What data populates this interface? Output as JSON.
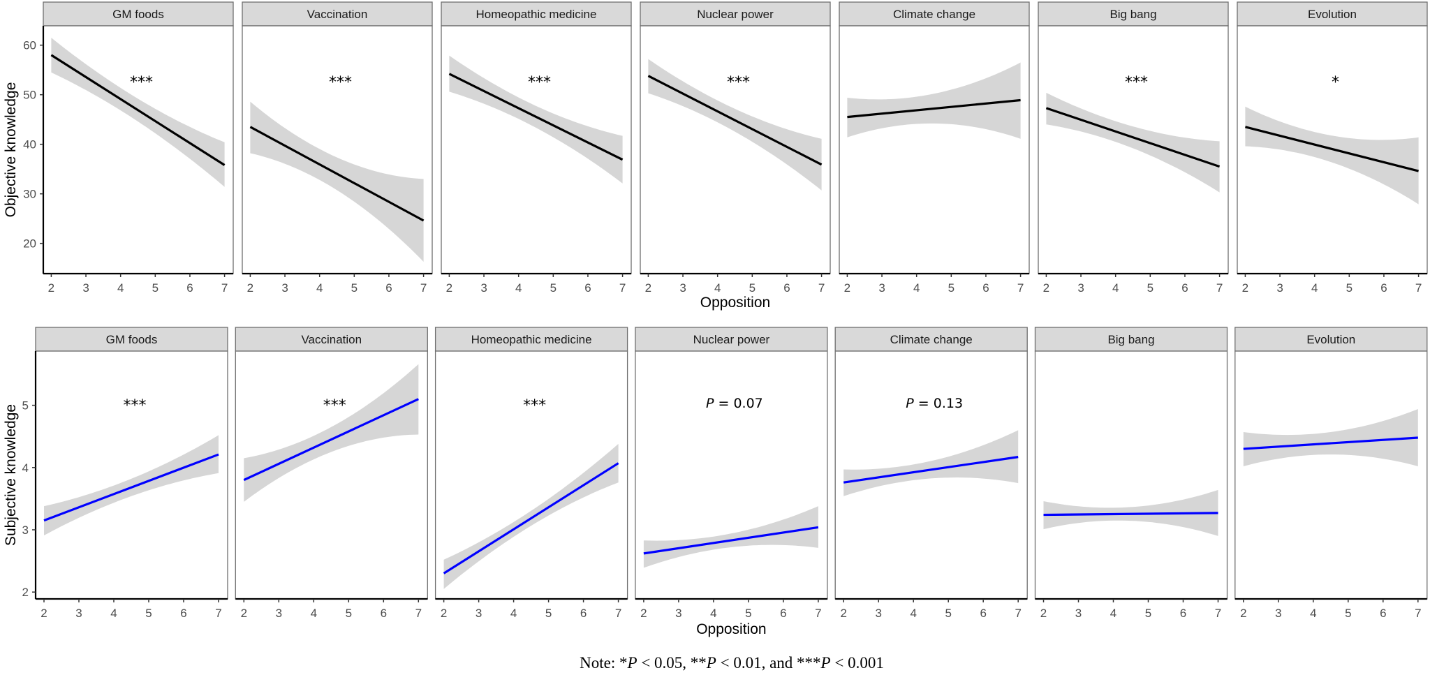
{
  "note": {
    "segments": [
      {
        "text": "Note: *",
        "italic": false
      },
      {
        "text": "P",
        "italic": true
      },
      {
        "text": " < 0.05, **",
        "italic": false
      },
      {
        "text": "P",
        "italic": true
      },
      {
        "text": " < 0.01, and ***",
        "italic": false
      },
      {
        "text": "P",
        "italic": true
      },
      {
        "text": " < 0.001",
        "italic": false
      }
    ]
  },
  "chart_data": [
    {
      "type": "line",
      "facet_row": "top",
      "xlabel": "Opposition",
      "ylabel": "Objective knowledge",
      "xlim": [
        1.77,
        7.25
      ],
      "ylim": [
        13.9,
        63.9
      ],
      "xticks": [
        "2",
        "3",
        "4",
        "5",
        "6",
        "7"
      ],
      "yticks": [
        "20",
        "30",
        "40",
        "50",
        "60"
      ],
      "grid": false,
      "line_color": "#000000",
      "band_color": "#d6d6d6",
      "strip_color": "#d9d9d9",
      "panels": [
        {
          "title": "GM foods",
          "annotation": [
            {
              "text": "***",
              "italic": false
            }
          ],
          "fit": {
            "x": [
              2,
              7
            ],
            "y": [
              58.0,
              35.8
            ]
          },
          "ci": {
            "x": [
              2,
              4.5,
              7
            ],
            "lower": [
              54.5,
              44.6,
              31.4
            ],
            "upper": [
              61.5,
              49.2,
              40.4
            ]
          }
        },
        {
          "title": "Vaccination",
          "annotation": [
            {
              "text": "***",
              "italic": false
            }
          ],
          "fit": {
            "x": [
              2,
              7
            ],
            "y": [
              43.5,
              24.6
            ]
          },
          "ci": {
            "x": [
              2,
              4.5,
              7
            ],
            "lower": [
              38.2,
              30.75,
              16.3
            ],
            "upper": [
              48.6,
              37.35,
              33.0
            ]
          }
        },
        {
          "title": "Homeopathic medicine",
          "annotation": [
            {
              "text": "***",
              "italic": false
            }
          ],
          "fit": {
            "x": [
              2,
              7
            ],
            "y": [
              54.2,
              36.9
            ]
          },
          "ci": {
            "x": [
              2,
              4.5,
              7
            ],
            "lower": [
              50.6,
              43.35,
              32.1
            ],
            "upper": [
              57.9,
              47.75,
              41.7
            ]
          }
        },
        {
          "title": "Nuclear power",
          "annotation": [
            {
              "text": "***",
              "italic": false
            }
          ],
          "fit": {
            "x": [
              2,
              7
            ],
            "y": [
              53.8,
              35.9
            ]
          },
          "ci": {
            "x": [
              2,
              4.5,
              7
            ],
            "lower": [
              50.3,
              42.55,
              30.7
            ],
            "upper": [
              57.2,
              47.15,
              41.1
            ]
          }
        },
        {
          "title": "Climate change",
          "annotation": [],
          "fit": {
            "x": [
              2,
              7
            ],
            "y": [
              45.5,
              48.9
            ]
          },
          "ci": {
            "x": [
              2,
              4.5,
              7
            ],
            "lower": [
              41.4,
              44.2,
              41.1
            ],
            "upper": [
              49.4,
              50.2,
              56.5
            ]
          }
        },
        {
          "title": "Big bang",
          "annotation": [
            {
              "text": "***",
              "italic": false
            }
          ],
          "fit": {
            "x": [
              2,
              7
            ],
            "y": [
              47.3,
              35.5
            ]
          },
          "ci": {
            "x": [
              2,
              4.5,
              7
            ],
            "lower": [
              44.0,
              39.2,
              30.3
            ],
            "upper": [
              50.4,
              43.6,
              40.6
            ]
          }
        },
        {
          "title": "Evolution",
          "annotation": [
            {
              "text": "*",
              "italic": false
            }
          ],
          "fit": {
            "x": [
              2,
              7
            ],
            "y": [
              43.5,
              34.6
            ]
          },
          "ci": {
            "x": [
              2,
              4.5,
              7
            ],
            "lower": [
              39.6,
              36.35,
              27.9
            ],
            "upper": [
              47.6,
              41.75,
              41.4
            ]
          }
        }
      ]
    },
    {
      "type": "line",
      "facet_row": "bottom",
      "xlabel": "Opposition",
      "ylabel": "Subjective knowledge",
      "xlim": [
        1.76,
        7.26
      ],
      "ylim": [
        1.89,
        5.87
      ],
      "xticks": [
        "2",
        "3",
        "4",
        "5",
        "6",
        "7"
      ],
      "yticks": [
        "2",
        "3",
        "4",
        "5"
      ],
      "grid": false,
      "line_color": "#0000ff",
      "band_color": "#d6d6d6",
      "strip_color": "#d9d9d9",
      "panels": [
        {
          "title": "GM foods",
          "annotation": [
            {
              "text": "***",
              "italic": false
            }
          ],
          "fit": {
            "x": [
              2,
              7
            ],
            "y": [
              3.15,
              4.21
            ]
          },
          "ci": {
            "x": [
              2,
              4.5,
              7
            ],
            "lower": [
              2.91,
              3.54,
              3.91
            ],
            "upper": [
              3.38,
              3.82,
              4.52
            ]
          }
        },
        {
          "title": "Vaccination",
          "annotation": [
            {
              "text": "***",
              "italic": false
            }
          ],
          "fit": {
            "x": [
              2,
              7
            ],
            "y": [
              3.8,
              5.1
            ]
          },
          "ci": {
            "x": [
              2,
              4.5,
              7
            ],
            "lower": [
              3.45,
              4.25,
              4.53
            ],
            "upper": [
              4.15,
              4.65,
              5.66
            ]
          }
        },
        {
          "title": "Homeopathic medicine",
          "annotation": [
            {
              "text": "***",
              "italic": false
            }
          ],
          "fit": {
            "x": [
              2,
              7
            ],
            "y": [
              2.3,
              4.07
            ]
          },
          "ci": {
            "x": [
              2,
              4.5,
              7
            ],
            "lower": [
              2.05,
              3.065,
              3.76
            ],
            "upper": [
              2.52,
              3.305,
              4.38
            ]
          }
        },
        {
          "title": "Nuclear power",
          "annotation": [
            {
              "text": "P",
              "italic": true
            },
            {
              "text": " = 0.07",
              "italic": false
            }
          ],
          "fit": {
            "x": [
              2,
              7
            ],
            "y": [
              2.62,
              3.04
            ]
          },
          "ci": {
            "x": [
              2,
              4.5,
              7
            ],
            "lower": [
              2.39,
              2.72,
              2.71
            ],
            "upper": [
              2.83,
              2.94,
              3.38
            ]
          }
        },
        {
          "title": "Climate change",
          "annotation": [
            {
              "text": "P",
              "italic": true
            },
            {
              "text": " = 0.13",
              "italic": false
            }
          ],
          "fit": {
            "x": [
              2,
              7
            ],
            "y": [
              3.76,
              4.17
            ]
          },
          "ci": {
            "x": [
              2,
              4.5,
              7
            ],
            "lower": [
              3.54,
              3.825,
              3.75
            ],
            "upper": [
              3.97,
              4.105,
              4.6
            ]
          }
        },
        {
          "title": "Big bang",
          "annotation": [],
          "fit": {
            "x": [
              2,
              7
            ],
            "y": [
              3.24,
              3.27
            ]
          },
          "ci": {
            "x": [
              2,
              4.5,
              7
            ],
            "lower": [
              3.01,
              3.145,
              2.9
            ],
            "upper": [
              3.46,
              3.365,
              3.64
            ]
          }
        },
        {
          "title": "Evolution",
          "annotation": [],
          "fit": {
            "x": [
              2,
              7
            ],
            "y": [
              4.3,
              4.48
            ]
          },
          "ci": {
            "x": [
              2,
              4.5,
              7
            ],
            "lower": [
              4.02,
              4.21,
              4.02
            ],
            "upper": [
              4.57,
              4.57,
              4.94
            ]
          }
        }
      ]
    }
  ]
}
